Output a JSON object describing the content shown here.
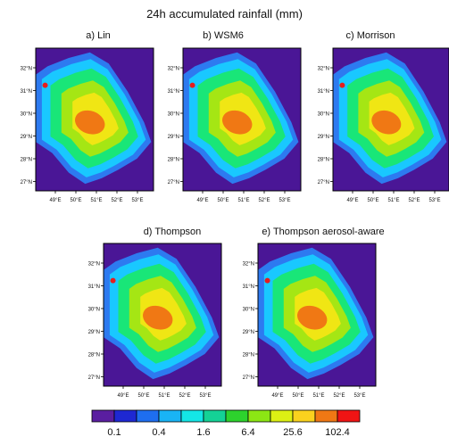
{
  "title": "24h accumulated rainfall (mm)",
  "panels": [
    {
      "label": "a) Lin"
    },
    {
      "label": "b) WSM6"
    },
    {
      "label": "c) Morrison"
    },
    {
      "label": "d) Thompson"
    },
    {
      "label": "e) Thompson aerosol-aware"
    }
  ],
  "lat_ticks": [
    "32°N",
    "31°N",
    "30°N",
    "29°N",
    "28°N",
    "27°N"
  ],
  "lon_ticks": [
    "49°E",
    "50°E",
    "51°E",
    "52°E",
    "53°E"
  ],
  "colorbar": {
    "labels": [
      "0.1",
      "0.4",
      "1.6",
      "6.4",
      "25.6",
      "102.4"
    ],
    "colors": [
      "#5a1ea0",
      "#1e28d2",
      "#1e6ef0",
      "#19b4f5",
      "#14e6e6",
      "#14d296",
      "#2dd22d",
      "#8ce614",
      "#dcf014",
      "#fad21e",
      "#f07814",
      "#f01414"
    ]
  },
  "field_colors": {
    "background": "#4a1696",
    "level1": "#2d7af0",
    "level2": "#19c8ff",
    "level3": "#19e678",
    "level4": "#a5e614",
    "level5": "#f0e614",
    "level6": "#f07814",
    "level7": "#e61e1e"
  }
}
